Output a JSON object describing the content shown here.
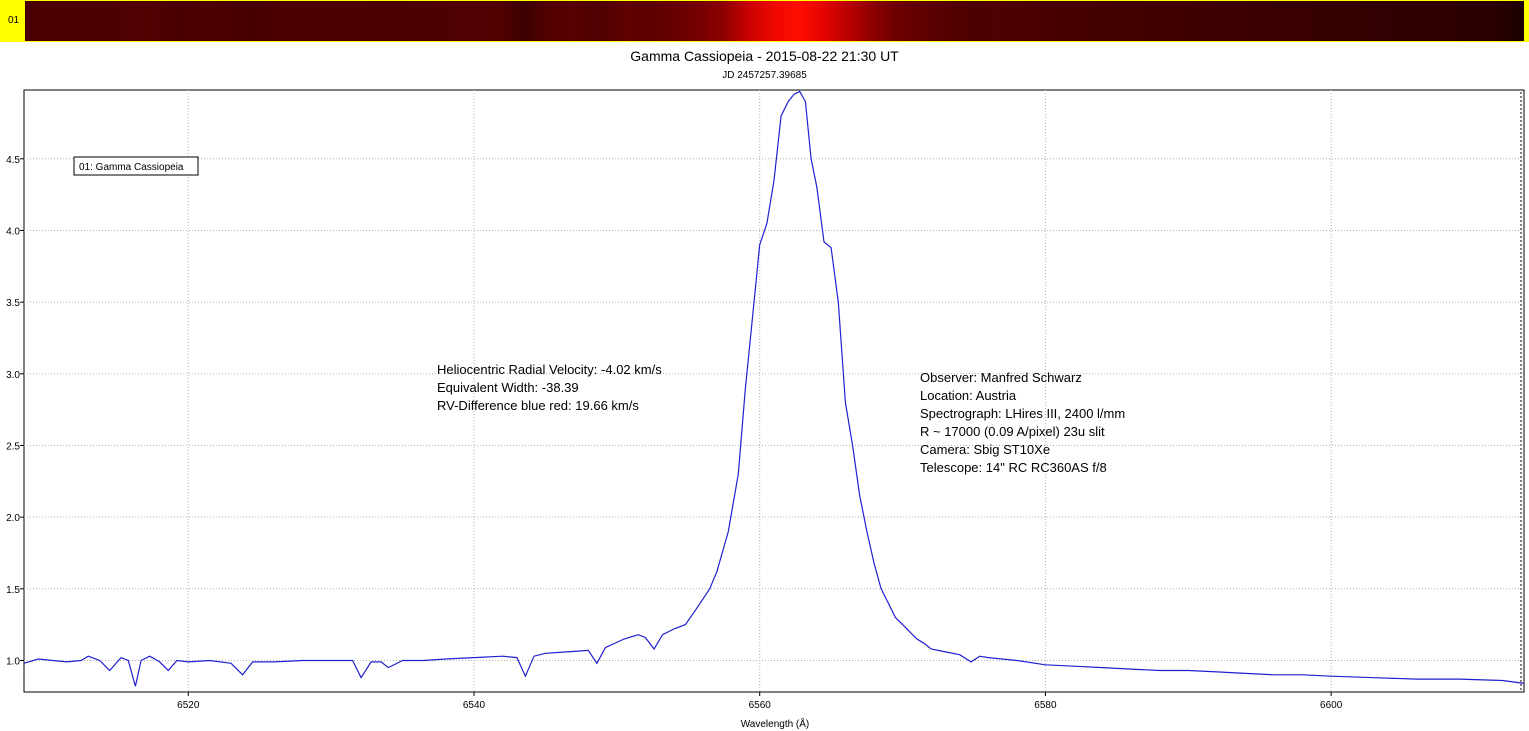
{
  "strip": {
    "label": "01"
  },
  "chart_data": {
    "type": "line",
    "title": "Gamma Cassiopeia - 2015-08-22 21:30 UT",
    "subtitle": "JD 2457257.39685",
    "xlabel": "Wavelength (Å)",
    "ylabel": "",
    "xlim": [
      6508.5,
      6613.5
    ],
    "ylim": [
      0.78,
      4.98
    ],
    "xticks": [
      6520,
      6540,
      6560,
      6580,
      6600
    ],
    "yticks": [
      1.0,
      1.5,
      2.0,
      2.5,
      3.0,
      3.5,
      4.0,
      4.5
    ],
    "grid": true,
    "legend": {
      "position": "top-left",
      "entries": [
        "01: Gamma Cassiopeia"
      ]
    },
    "colors": {
      "line": "#2020d0",
      "grid": "#b0b0b0"
    },
    "annotations": {
      "left_block": [
        "Heliocentric Radial Velocity: -4.02 km/s",
        "Equivalent Width: -38.39",
        "RV-Difference blue red: 19.66 km/s"
      ],
      "right_block": [
        "Observer: Manfred Schwarz",
        "Location: Austria",
        "Spectrograph: LHires III, 2400 l/mm",
        "R ~ 17000 (0.09 A/pixel) 23u slit",
        "Camera: Sbig ST10Xe",
        "Telescope: 14\" RC RC360AS f/8"
      ]
    },
    "series": [
      {
        "name": "01: Gamma Cassiopeia",
        "x": [
          6508.5,
          6509.5,
          6510.5,
          6511.5,
          6512.5,
          6513.0,
          6513.8,
          6514.5,
          6515.3,
          6515.8,
          6516.3,
          6516.7,
          6517.3,
          6518.0,
          6518.6,
          6519.2,
          6520.0,
          6521.5,
          6523.0,
          6523.8,
          6524.5,
          6526.0,
          6528.0,
          6530.0,
          6531.5,
          6532.1,
          6532.8,
          6533.5,
          6534.0,
          6535.0,
          6536.5,
          6538.0,
          6540.0,
          6542.0,
          6543.0,
          6543.6,
          6544.2,
          6545.0,
          6546.5,
          6548.0,
          6548.6,
          6549.2,
          6550.5,
          6551.5,
          6552.0,
          6552.6,
          6553.2,
          6554.0,
          6554.8,
          6555.5,
          6556.5,
          6557.0,
          6557.8,
          6558.5,
          6559.0,
          6559.5,
          6560.0,
          6560.5,
          6561.0,
          6561.5,
          6562.0,
          6562.4,
          6562.8,
          6563.2,
          6563.6,
          6564.0,
          6564.5,
          6565.0,
          6565.5,
          6566.0,
          6566.5,
          6567.0,
          6567.5,
          6568.0,
          6568.5,
          6569.0,
          6569.5,
          6570.0,
          6570.5,
          6571.0,
          6571.5,
          6572.0,
          6573.0,
          6574.0,
          6574.8,
          6575.4,
          6576.0,
          6578.0,
          6580.0,
          6582.0,
          6584.0,
          6586.0,
          6588.0,
          6590.0,
          6592.0,
          6594.0,
          6596.0,
          6598.0,
          6600.0,
          6603.0,
          6606.0,
          6609.0,
          6612.0,
          6613.5
        ],
        "y": [
          0.98,
          1.01,
          1.0,
          0.99,
          1.0,
          1.03,
          1.0,
          0.93,
          1.02,
          1.0,
          0.82,
          1.0,
          1.03,
          0.99,
          0.93,
          1.0,
          0.99,
          1.0,
          0.98,
          0.9,
          0.99,
          0.99,
          1.0,
          1.0,
          1.0,
          0.88,
          0.99,
          0.99,
          0.95,
          1.0,
          1.0,
          1.01,
          1.02,
          1.03,
          1.02,
          0.89,
          1.03,
          1.05,
          1.06,
          1.07,
          0.98,
          1.09,
          1.15,
          1.18,
          1.16,
          1.08,
          1.18,
          1.22,
          1.25,
          1.35,
          1.5,
          1.62,
          1.9,
          2.3,
          2.9,
          3.4,
          3.9,
          4.05,
          4.35,
          4.8,
          4.9,
          4.95,
          4.97,
          4.9,
          4.5,
          4.3,
          3.92,
          3.88,
          3.5,
          2.8,
          2.5,
          2.15,
          1.9,
          1.68,
          1.5,
          1.4,
          1.3,
          1.25,
          1.2,
          1.15,
          1.12,
          1.08,
          1.06,
          1.04,
          0.99,
          1.03,
          1.02,
          1.0,
          0.97,
          0.96,
          0.95,
          0.94,
          0.93,
          0.93,
          0.92,
          0.91,
          0.9,
          0.9,
          0.89,
          0.88,
          0.87,
          0.87,
          0.86,
          0.84
        ]
      }
    ]
  }
}
